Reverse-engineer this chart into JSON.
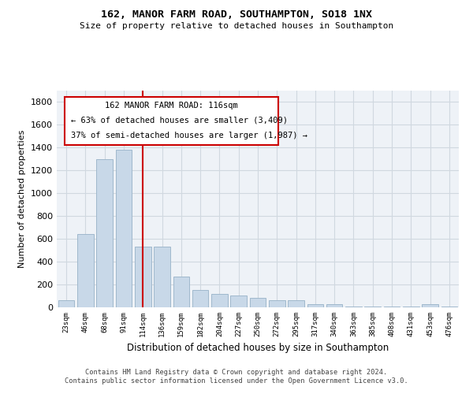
{
  "title": "162, MANOR FARM ROAD, SOUTHAMPTON, SO18 1NX",
  "subtitle": "Size of property relative to detached houses in Southampton",
  "xlabel": "Distribution of detached houses by size in Southampton",
  "ylabel": "Number of detached properties",
  "bar_color": "#c8d8e8",
  "bar_edge_color": "#a0b8cc",
  "grid_color": "#d0d8e0",
  "background_color": "#eef2f7",
  "annotation_box_color": "#cc0000",
  "vline_color": "#cc0000",
  "vline_x_index": 4,
  "annotation_text_line1": "162 MANOR FARM ROAD: 116sqm",
  "annotation_text_line2": "← 63% of detached houses are smaller (3,409)",
  "annotation_text_line3": "37% of semi-detached houses are larger (1,987) →",
  "categories": [
    "23sqm",
    "46sqm",
    "68sqm",
    "91sqm",
    "114sqm",
    "136sqm",
    "159sqm",
    "182sqm",
    "204sqm",
    "227sqm",
    "250sqm",
    "272sqm",
    "295sqm",
    "317sqm",
    "340sqm",
    "363sqm",
    "385sqm",
    "408sqm",
    "431sqm",
    "453sqm",
    "476sqm"
  ],
  "values": [
    65,
    640,
    1300,
    1380,
    530,
    530,
    270,
    155,
    120,
    105,
    80,
    65,
    65,
    30,
    30,
    5,
    5,
    5,
    5,
    30,
    5
  ],
  "ylim": [
    0,
    1900
  ],
  "yticks": [
    0,
    200,
    400,
    600,
    800,
    1000,
    1200,
    1400,
    1600,
    1800
  ],
  "footer_line1": "Contains HM Land Registry data © Crown copyright and database right 2024.",
  "footer_line2": "Contains public sector information licensed under the Open Government Licence v3.0."
}
